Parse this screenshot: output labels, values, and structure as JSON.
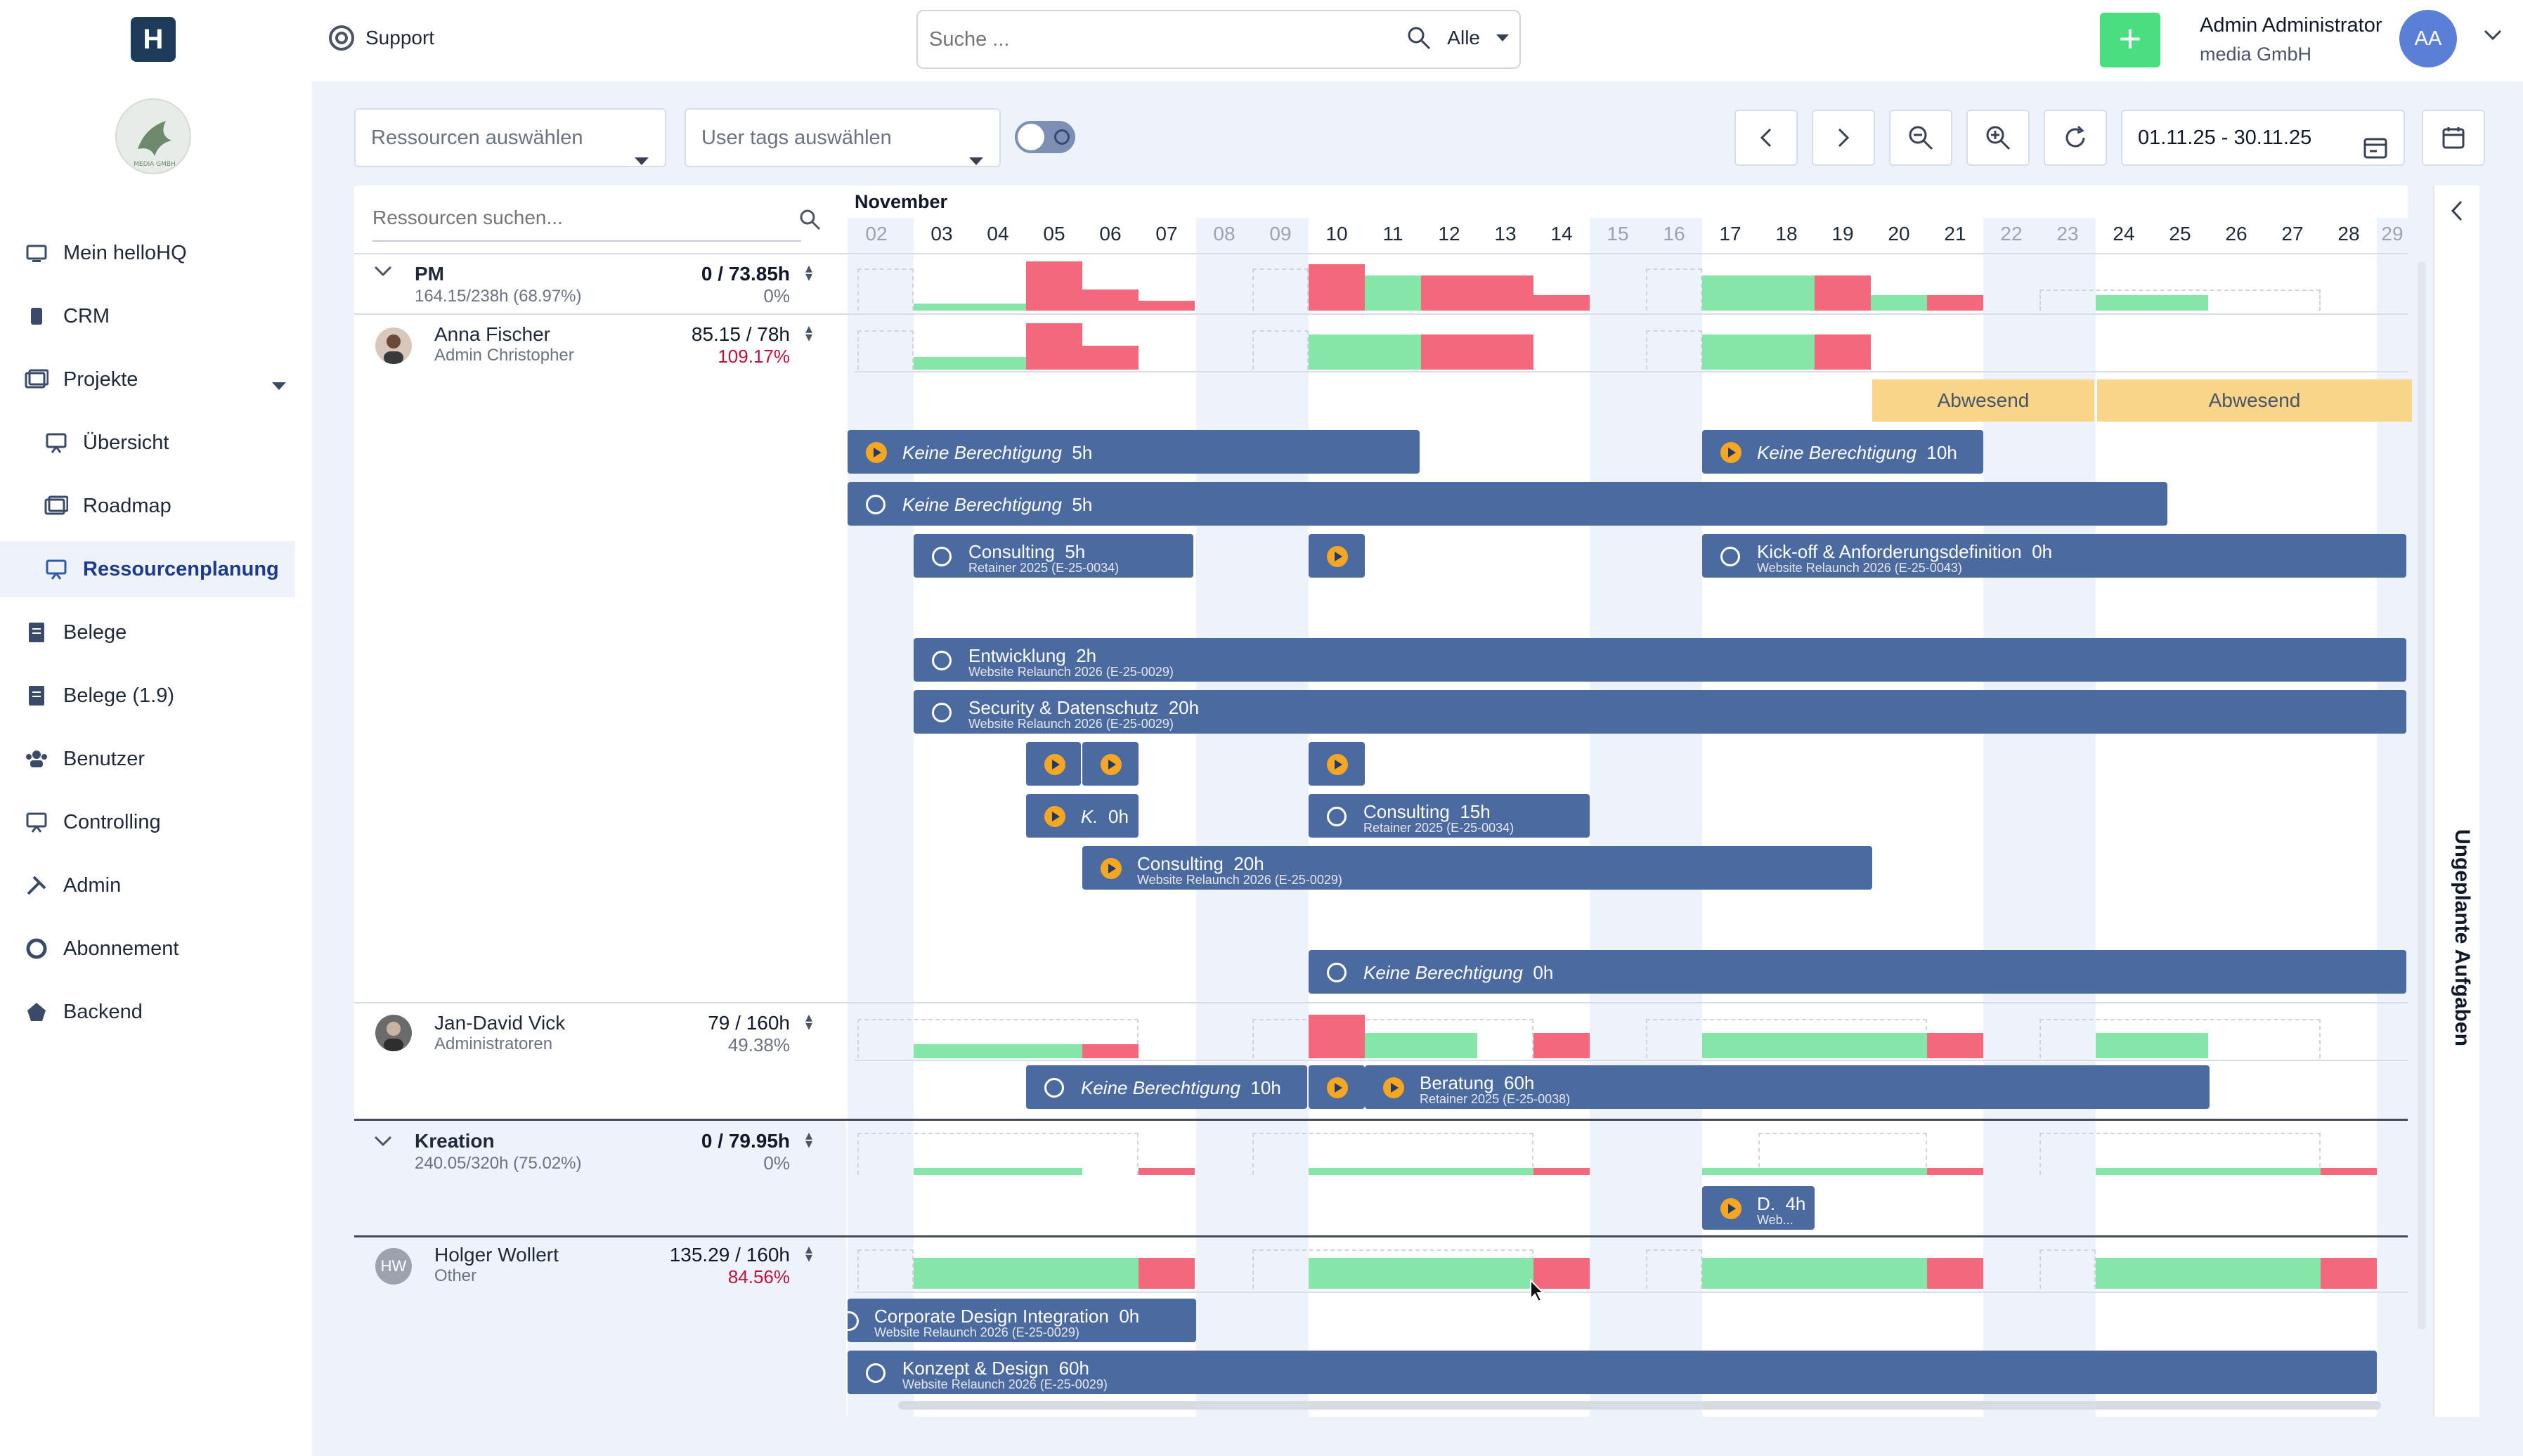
{
  "nav": {
    "brand": "H",
    "logo_text": "MEDIA GMBH",
    "items": [
      {
        "label": "Mein helloHQ"
      },
      {
        "label": "CRM"
      },
      {
        "label": "Projekte"
      },
      {
        "label": "Übersicht"
      },
      {
        "label": "Roadmap"
      },
      {
        "label": "Ressourcenplanung"
      },
      {
        "label": "Belege"
      },
      {
        "label": "Belege (1.9)"
      },
      {
        "label": "Benutzer"
      },
      {
        "label": "Controlling"
      },
      {
        "label": "Admin"
      },
      {
        "label": "Abonnement"
      },
      {
        "label": "Backend"
      }
    ],
    "active": "Ressourcenplanung"
  },
  "topbar": {
    "support": "Support",
    "search_placeholder": "Suche ...",
    "search_scope": "Alle",
    "user_name": "Admin Administrator",
    "user_org": "media GmbH",
    "user_initials": "AA"
  },
  "toolbar": {
    "resources_select": "Ressourcen auswählen",
    "tags_select": "User tags auswählen",
    "date_range": "01.11.25 - 30.11.25"
  },
  "panel": {
    "resource_search_placeholder": "Ressourcen suchen...",
    "month": "November",
    "days": [
      "02",
      "03",
      "04",
      "05",
      "06",
      "07",
      "08",
      "09",
      "10",
      "11",
      "12",
      "13",
      "14",
      "15",
      "16",
      "17",
      "18",
      "19",
      "20",
      "21",
      "22",
      "23",
      "24",
      "25",
      "26",
      "27",
      "28",
      "29"
    ],
    "unplanned_label": "Ungeplante Aufgaben"
  },
  "rows": {
    "pm": {
      "name": "PM",
      "sub": "164.15/238h (68.97%)",
      "hours": "0 / 73.85h",
      "pct": "0%"
    },
    "anna": {
      "name": "Anna Fischer",
      "sub": "Admin Christopher",
      "hours": "85.15 / 78h",
      "pct": "109.17%"
    },
    "jan": {
      "name": "Jan-David Vick",
      "sub": "Administratoren",
      "hours": "79 / 160h",
      "pct": "49.38%"
    },
    "kreation": {
      "name": "Kreation",
      "sub": "240.05/320h (75.02%)",
      "hours": "0 / 79.95h",
      "pct": "0%"
    },
    "holger": {
      "name": "Holger Wollert",
      "sub": "Other",
      "hours": "135.29 / 160h",
      "pct": "84.56%",
      "initials": "HW"
    }
  },
  "absent": {
    "label": "Abwesend"
  },
  "tasks": {
    "t1": {
      "title": "Keine Berechtigung",
      "hours": "5h"
    },
    "t2": {
      "title": "Keine Berechtigung",
      "hours": "10h"
    },
    "t3": {
      "title": "Keine Berechtigung",
      "hours": "5h"
    },
    "t4": {
      "title": "Consulting",
      "hours": "5h",
      "sub": "Retainer 2025 (E-25-0034)"
    },
    "t5": {
      "title": "Kick-off & Anforderungsdefinition",
      "hours": "0h",
      "sub": "Website Relaunch 2026 (E-25-0043)"
    },
    "t6": {
      "title": "Entwicklung",
      "hours": "2h",
      "sub": "Website Relaunch 2026 (E-25-0029)"
    },
    "t7": {
      "title": "Security & Datenschutz",
      "hours": "20h",
      "sub": "Website Relaunch 2026 (E-25-0029)"
    },
    "t8": {
      "title": "K.",
      "hours": "0h"
    },
    "t9": {
      "title": "Consulting",
      "hours": "15h",
      "sub": "Retainer 2025 (E-25-0034)"
    },
    "t10": {
      "title": "Consulting",
      "hours": "20h",
      "sub": "Website Relaunch 2026 (E-25-0029)"
    },
    "t11": {
      "title": "Keine Berechtigung",
      "hours": "0h"
    },
    "t12": {
      "title": "Keine Berechtigung",
      "hours": "10h"
    },
    "t13": {
      "title": "Beratung",
      "hours": "60h",
      "sub": "Retainer 2025 (E-25-0038)"
    },
    "t14": {
      "title": "D.",
      "hours": "4h",
      "sub": "Web..."
    },
    "t15": {
      "title": "Corporate Design Integration",
      "hours": "0h",
      "sub": "Website Relaunch 2026 (E-25-0029)"
    },
    "t16": {
      "title": "Konzept & Design",
      "hours": "60h",
      "sub": "Website Relaunch 2026 (E-25-0029)"
    }
  },
  "colors": {
    "task": "#4b6a9f",
    "booked": "#86e6a9",
    "over": "#f4687d",
    "absent": "#f9d58a",
    "accent": "#4ade80"
  }
}
